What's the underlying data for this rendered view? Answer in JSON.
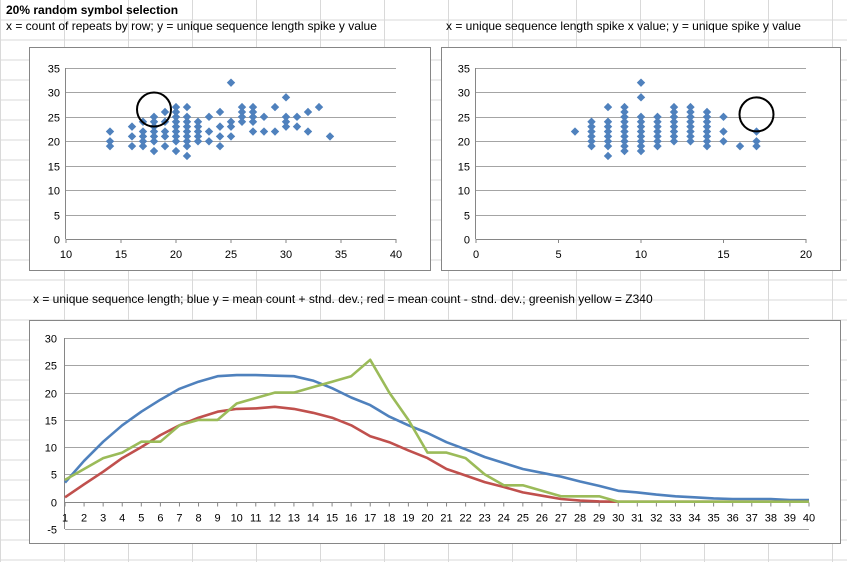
{
  "sheet": {
    "title": "20%  random symbol selection",
    "caption_top_left": "x = count of repeats by row; y = unique sequence length spike y value",
    "caption_top_right": "x = unique sequence length spike x value; y = unique spike y value",
    "caption_bottom": "x = unique sequence length; blue y = mean count + stnd. dev.; red = mean count - stnd. dev.; greenish yellow = Z340"
  },
  "chart_data": [
    {
      "type": "scatter",
      "series_color": "#4f81bd",
      "xlim": [
        10,
        40
      ],
      "x_ticks": [
        10,
        15,
        20,
        25,
        30,
        35,
        40
      ],
      "ylim": [
        0,
        35
      ],
      "y_ticks": [
        0,
        5,
        10,
        15,
        20,
        25,
        30,
        35
      ],
      "grid": "horizontal",
      "annotation_circle": {
        "x": 18,
        "y": 26.5
      },
      "points": [
        [
          14,
          22
        ],
        [
          14,
          20
        ],
        [
          14,
          19
        ],
        [
          16,
          23
        ],
        [
          16,
          21
        ],
        [
          16,
          19
        ],
        [
          17,
          24
        ],
        [
          17,
          22
        ],
        [
          17,
          21
        ],
        [
          17,
          20
        ],
        [
          17,
          19
        ],
        [
          18,
          25
        ],
        [
          18,
          24
        ],
        [
          18,
          23
        ],
        [
          18,
          22
        ],
        [
          18,
          21
        ],
        [
          18,
          20
        ],
        [
          18,
          18
        ],
        [
          19,
          26
        ],
        [
          19,
          24
        ],
        [
          19,
          22
        ],
        [
          19,
          21
        ],
        [
          19,
          19
        ],
        [
          20,
          27
        ],
        [
          20,
          26
        ],
        [
          20,
          25
        ],
        [
          20,
          24
        ],
        [
          20,
          23
        ],
        [
          20,
          22
        ],
        [
          20,
          21
        ],
        [
          20,
          20
        ],
        [
          20,
          18
        ],
        [
          21,
          27
        ],
        [
          21,
          25
        ],
        [
          21,
          24
        ],
        [
          21,
          23
        ],
        [
          21,
          22
        ],
        [
          21,
          21
        ],
        [
          21,
          20
        ],
        [
          21,
          19
        ],
        [
          21,
          17
        ],
        [
          22,
          24
        ],
        [
          22,
          23
        ],
        [
          22,
          22
        ],
        [
          22,
          21
        ],
        [
          22,
          20
        ],
        [
          23,
          25
        ],
        [
          23,
          22
        ],
        [
          23,
          20
        ],
        [
          24,
          26
        ],
        [
          24,
          23
        ],
        [
          24,
          21
        ],
        [
          24,
          19
        ],
        [
          25,
          32
        ],
        [
          25,
          24
        ],
        [
          25,
          23
        ],
        [
          25,
          21
        ],
        [
          26,
          27
        ],
        [
          26,
          26
        ],
        [
          26,
          25
        ],
        [
          26,
          24
        ],
        [
          27,
          27
        ],
        [
          27,
          26
        ],
        [
          27,
          25
        ],
        [
          27,
          24
        ],
        [
          27,
          22
        ],
        [
          28,
          25
        ],
        [
          28,
          22
        ],
        [
          29,
          27
        ],
        [
          29,
          22
        ],
        [
          30,
          29
        ],
        [
          30,
          25
        ],
        [
          30,
          24
        ],
        [
          30,
          23
        ],
        [
          31,
          25
        ],
        [
          31,
          23
        ],
        [
          32,
          26
        ],
        [
          32,
          22
        ],
        [
          33,
          27
        ],
        [
          34,
          21
        ]
      ]
    },
    {
      "type": "scatter",
      "series_color": "#4f81bd",
      "xlim": [
        0,
        20
      ],
      "x_ticks": [
        0,
        5,
        10,
        15,
        20
      ],
      "ylim": [
        0,
        35
      ],
      "y_ticks": [
        0,
        5,
        10,
        15,
        20,
        25,
        30,
        35
      ],
      "grid": "horizontal",
      "annotation_circle": {
        "x": 17,
        "y": 25.5
      },
      "points": [
        [
          6,
          22
        ],
        [
          7,
          24
        ],
        [
          7,
          23
        ],
        [
          7,
          22
        ],
        [
          7,
          21
        ],
        [
          7,
          20
        ],
        [
          7,
          19
        ],
        [
          8,
          27
        ],
        [
          8,
          24
        ],
        [
          8,
          23
        ],
        [
          8,
          22
        ],
        [
          8,
          21
        ],
        [
          8,
          20
        ],
        [
          8,
          19
        ],
        [
          8,
          17
        ],
        [
          9,
          27
        ],
        [
          9,
          26
        ],
        [
          9,
          25
        ],
        [
          9,
          24
        ],
        [
          9,
          23
        ],
        [
          9,
          22
        ],
        [
          9,
          21
        ],
        [
          9,
          20
        ],
        [
          9,
          19
        ],
        [
          9,
          18
        ],
        [
          10,
          32
        ],
        [
          10,
          29
        ],
        [
          10,
          25
        ],
        [
          10,
          24
        ],
        [
          10,
          23
        ],
        [
          10,
          22
        ],
        [
          10,
          21
        ],
        [
          10,
          20
        ],
        [
          10,
          19
        ],
        [
          10,
          18
        ],
        [
          11,
          25
        ],
        [
          11,
          24
        ],
        [
          11,
          23
        ],
        [
          11,
          22
        ],
        [
          11,
          21
        ],
        [
          11,
          20
        ],
        [
          11,
          19
        ],
        [
          12,
          27
        ],
        [
          12,
          26
        ],
        [
          12,
          25
        ],
        [
          12,
          24
        ],
        [
          12,
          23
        ],
        [
          12,
          22
        ],
        [
          12,
          21
        ],
        [
          12,
          20
        ],
        [
          13,
          27
        ],
        [
          13,
          26
        ],
        [
          13,
          25
        ],
        [
          13,
          24
        ],
        [
          13,
          23
        ],
        [
          13,
          22
        ],
        [
          13,
          21
        ],
        [
          13,
          20
        ],
        [
          14,
          26
        ],
        [
          14,
          25
        ],
        [
          14,
          24
        ],
        [
          14,
          23
        ],
        [
          14,
          22
        ],
        [
          14,
          21
        ],
        [
          14,
          20
        ],
        [
          14,
          19
        ],
        [
          15,
          25
        ],
        [
          15,
          22
        ],
        [
          15,
          20
        ],
        [
          16,
          19
        ],
        [
          17,
          22
        ],
        [
          17,
          20
        ],
        [
          17,
          19
        ]
      ]
    },
    {
      "type": "line",
      "x": [
        1,
        2,
        3,
        4,
        5,
        6,
        7,
        8,
        9,
        10,
        11,
        12,
        13,
        14,
        15,
        16,
        17,
        18,
        19,
        20,
        21,
        22,
        23,
        24,
        25,
        26,
        27,
        28,
        29,
        30,
        31,
        32,
        33,
        34,
        35,
        36,
        37,
        38,
        39,
        40
      ],
      "x_ticks": [
        1,
        2,
        3,
        4,
        5,
        6,
        7,
        8,
        9,
        10,
        11,
        12,
        13,
        14,
        15,
        16,
        17,
        18,
        19,
        20,
        21,
        22,
        23,
        24,
        25,
        26,
        27,
        28,
        29,
        30,
        31,
        32,
        33,
        34,
        35,
        36,
        37,
        38,
        39,
        40
      ],
      "ylim": [
        -5,
        30
      ],
      "y_ticks": [
        -5,
        0,
        5,
        10,
        15,
        20,
        25,
        30
      ],
      "grid": "horizontal",
      "series": [
        {
          "color": "#4f81bd",
          "values": [
            3.5,
            7.5,
            11,
            14,
            16.5,
            18.7,
            20.7,
            22,
            23,
            23.2,
            23.2,
            23.1,
            23,
            22.2,
            20.8,
            19.1,
            17.7,
            15.6,
            14,
            12.6,
            10.9,
            9.6,
            8.2,
            7.1,
            6,
            5.3,
            4.6,
            3.7,
            2.9,
            2,
            1.7,
            1.3,
            1,
            0.8,
            0.6,
            0.5,
            0.5,
            0.5,
            0.3,
            0.3
          ]
        },
        {
          "color": "#c0504d",
          "values": [
            0.8,
            3.2,
            5.5,
            8,
            10,
            12.2,
            14,
            15.4,
            16.5,
            17,
            17.1,
            17.4,
            17,
            16.3,
            15.4,
            14,
            12,
            10.9,
            9.4,
            8,
            6,
            4.8,
            3.6,
            2.7,
            1.7,
            1.1,
            0.5,
            0.2,
            0.05,
            0,
            0,
            0,
            0,
            0,
            0,
            0,
            0,
            0,
            0,
            0
          ]
        },
        {
          "color": "#9bbb59",
          "values": [
            4,
            6,
            8,
            9,
            11,
            11,
            14,
            15,
            15,
            18,
            19,
            20,
            20,
            21,
            22,
            23,
            26,
            20,
            15,
            9,
            9,
            8,
            5,
            3,
            3,
            2,
            1,
            1,
            1,
            0,
            0,
            0,
            0,
            0,
            0,
            0,
            0,
            0,
            0,
            0
          ]
        }
      ]
    }
  ]
}
